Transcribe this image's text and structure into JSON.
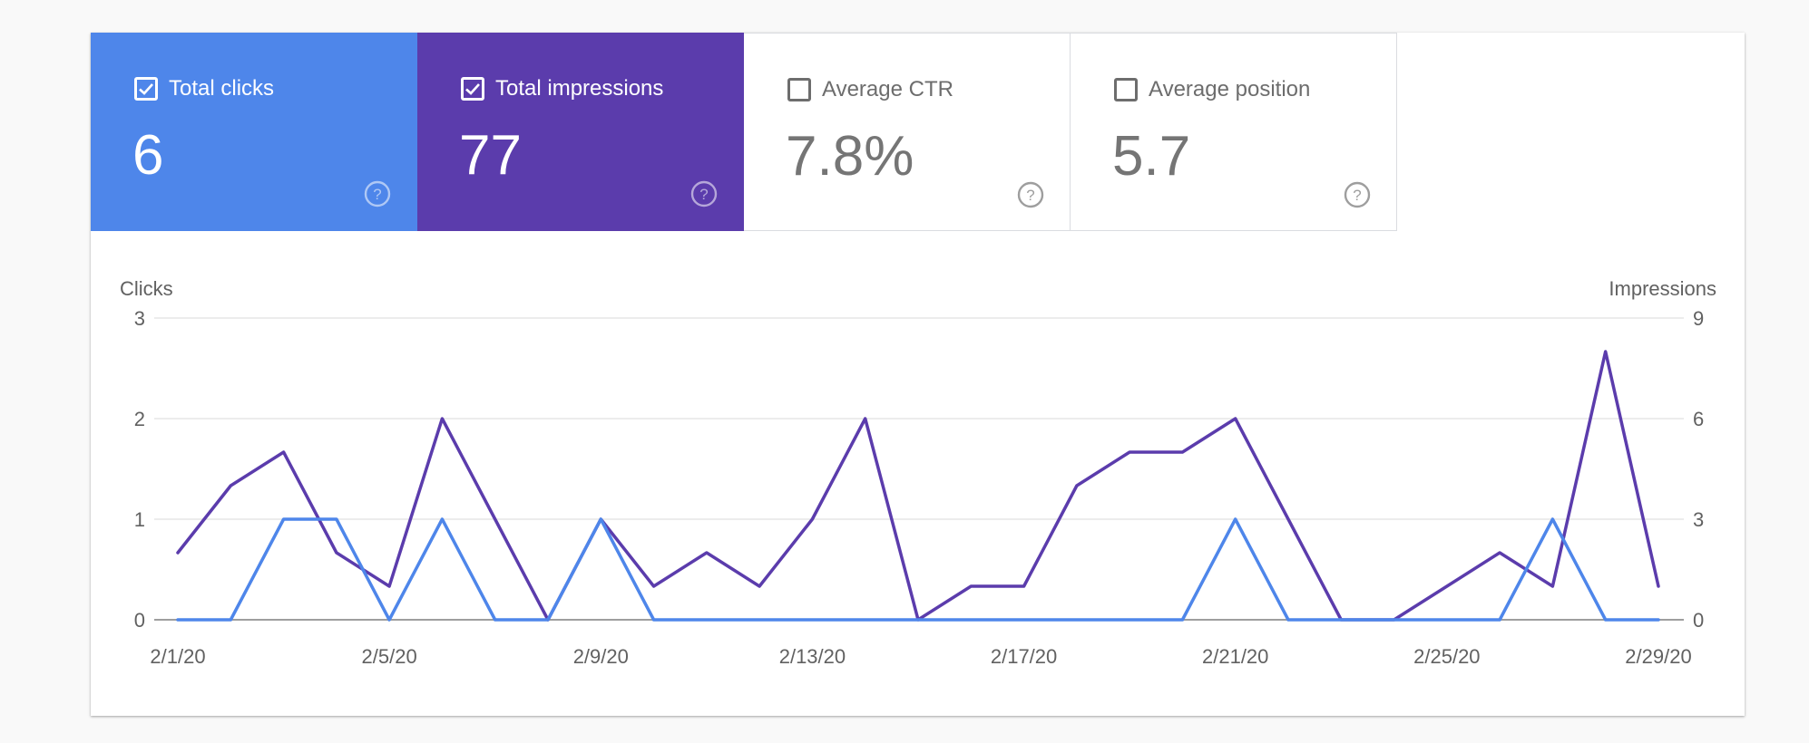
{
  "metrics": [
    {
      "label": "Total clicks",
      "value": "6",
      "checked": true,
      "color": "#4e86ea"
    },
    {
      "label": "Total impressions",
      "value": "77",
      "checked": true,
      "color": "#5b3cac"
    },
    {
      "label": "Average CTR",
      "value": "7.8%",
      "checked": false,
      "color": "#ffffff"
    },
    {
      "label": "Average position",
      "value": "5.7",
      "checked": false,
      "color": "#ffffff"
    }
  ],
  "chart_data": {
    "type": "line",
    "x": [
      "2/1/20",
      "2/2/20",
      "2/3/20",
      "2/4/20",
      "2/5/20",
      "2/6/20",
      "2/7/20",
      "2/8/20",
      "2/9/20",
      "2/10/20",
      "2/11/20",
      "2/12/20",
      "2/13/20",
      "2/14/20",
      "2/15/20",
      "2/16/20",
      "2/17/20",
      "2/18/20",
      "2/19/20",
      "2/20/20",
      "2/21/20",
      "2/22/20",
      "2/23/20",
      "2/24/20",
      "2/25/20",
      "2/26/20",
      "2/27/20",
      "2/28/20",
      "2/29/20"
    ],
    "x_ticks": [
      "2/1/20",
      "2/5/20",
      "2/9/20",
      "2/13/20",
      "2/17/20",
      "2/21/20",
      "2/25/20",
      "2/29/20"
    ],
    "y_left_label": "Clicks",
    "y_right_label": "Impressions",
    "y_left_ticks": [
      "0",
      "1",
      "2",
      "3"
    ],
    "y_right_ticks": [
      "0",
      "3",
      "6",
      "9"
    ],
    "y_left_lim": [
      0,
      3
    ],
    "y_right_lim": [
      0,
      9
    ],
    "grid": true,
    "series": [
      {
        "name": "Total clicks",
        "axis": "left",
        "color": "#4e86ea",
        "values": [
          0,
          0,
          1,
          1,
          0,
          1,
          0,
          0,
          1,
          0,
          0,
          0,
          0,
          0,
          0,
          0,
          0,
          0,
          0,
          0,
          1,
          0,
          0,
          0,
          0,
          0,
          1,
          0,
          0
        ]
      },
      {
        "name": "Total impressions",
        "axis": "right",
        "color": "#5b3cac",
        "values": [
          2,
          4,
          5,
          2,
          1,
          6,
          3,
          0,
          3,
          1,
          2,
          1,
          3,
          6,
          0,
          1,
          1,
          4,
          5,
          5,
          6,
          3,
          0,
          0,
          1,
          2,
          1,
          8,
          1
        ]
      }
    ]
  }
}
